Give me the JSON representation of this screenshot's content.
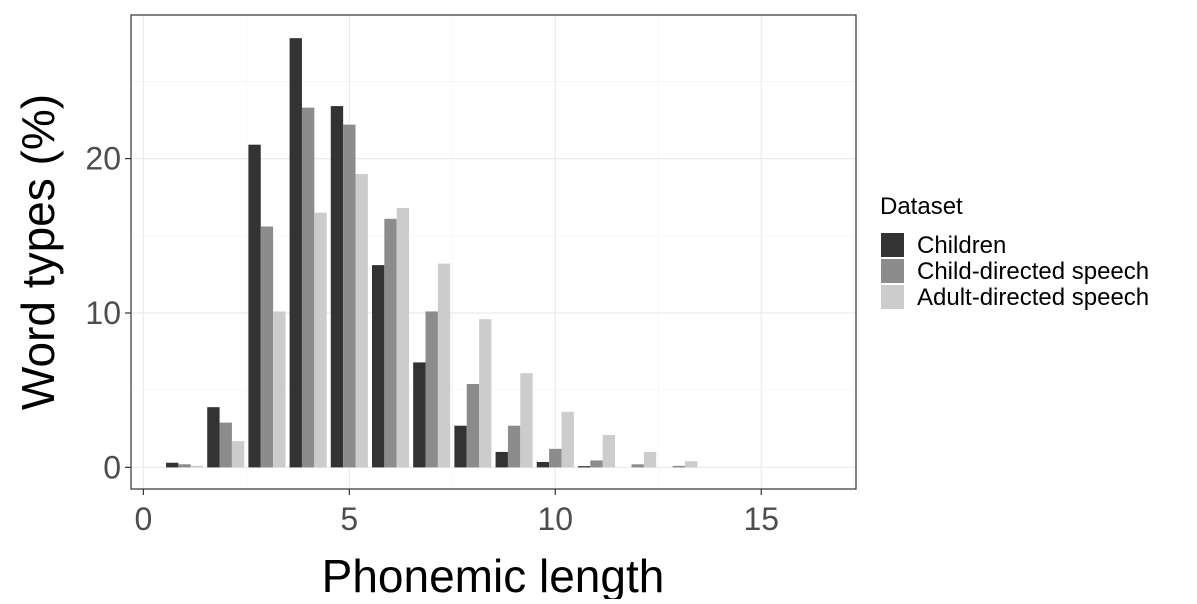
{
  "chart_data": {
    "type": "bar",
    "xlabel": "Phonemic length",
    "ylabel": "Word types (%)",
    "xlim": [
      -0.3,
      17.3
    ],
    "ylim": [
      -1.4,
      29.3
    ],
    "x_ticks": [
      0,
      5,
      10,
      15
    ],
    "y_ticks": [
      0,
      10,
      20
    ],
    "x_minor_ticks": [
      2.5,
      7.5,
      12.5
    ],
    "y_minor_ticks": [
      5,
      15,
      25
    ],
    "grid": true,
    "legend_position": "right",
    "legend_title": "Dataset",
    "bar_group_width": 0.9,
    "x": [
      1,
      2,
      3,
      4,
      5,
      6,
      7,
      8,
      9,
      10,
      11,
      12,
      13
    ],
    "series": [
      {
        "name": "Children",
        "color": "#333333",
        "values": [
          0.3,
          3.9,
          20.9,
          27.8,
          23.4,
          13.1,
          6.8,
          2.7,
          1.0,
          0.35,
          0.08,
          0.0,
          0.0
        ]
      },
      {
        "name": "Child-directed speech",
        "color": "#8c8c8c",
        "values": [
          0.2,
          2.9,
          15.6,
          23.3,
          22.2,
          16.1,
          10.1,
          5.4,
          2.7,
          1.2,
          0.45,
          0.2,
          0.1
        ]
      },
      {
        "name": "Adult-directed speech",
        "color": "#cccccc",
        "values": [
          0.1,
          1.7,
          10.1,
          16.5,
          19.0,
          16.8,
          13.2,
          9.6,
          6.1,
          3.6,
          2.1,
          1.0,
          0.4
        ]
      }
    ]
  }
}
